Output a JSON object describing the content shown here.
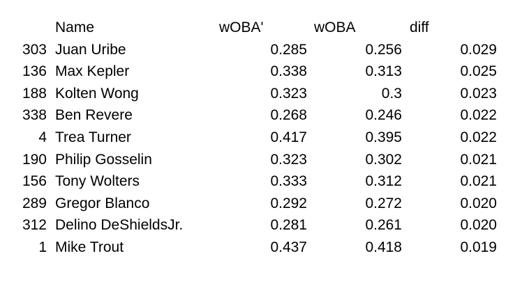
{
  "table": {
    "headers": {
      "name": "Name",
      "woba_prime": "wOBA'",
      "woba": "wOBA",
      "diff": "diff"
    },
    "rows": [
      {
        "id": "303",
        "name": "Juan Uribe",
        "woba_prime": "0.285",
        "woba": "0.256",
        "diff": "0.029"
      },
      {
        "id": "136",
        "name": "Max Kepler",
        "woba_prime": "0.338",
        "woba": "0.313",
        "diff": "0.025"
      },
      {
        "id": "188",
        "name": "Kolten Wong",
        "woba_prime": "0.323",
        "woba": "0.3",
        "diff": "0.023"
      },
      {
        "id": "338",
        "name": "Ben Revere",
        "woba_prime": "0.268",
        "woba": "0.246",
        "diff": "0.022"
      },
      {
        "id": "4",
        "name": "Trea Turner",
        "woba_prime": "0.417",
        "woba": "0.395",
        "diff": "0.022"
      },
      {
        "id": "190",
        "name": "Philip Gosselin",
        "woba_prime": "0.323",
        "woba": "0.302",
        "diff": "0.021"
      },
      {
        "id": "156",
        "name": "Tony Wolters",
        "woba_prime": "0.333",
        "woba": "0.312",
        "diff": "0.021"
      },
      {
        "id": "289",
        "name": "Gregor Blanco",
        "woba_prime": "0.292",
        "woba": "0.272",
        "diff": "0.020"
      },
      {
        "id": "312",
        "name": "Delino DeShieldsJr.",
        "woba_prime": "0.281",
        "woba": "0.261",
        "diff": "0.020"
      },
      {
        "id": "1",
        "name": "Mike Trout",
        "woba_prime": "0.437",
        "woba": "0.418",
        "diff": "0.019"
      }
    ]
  }
}
